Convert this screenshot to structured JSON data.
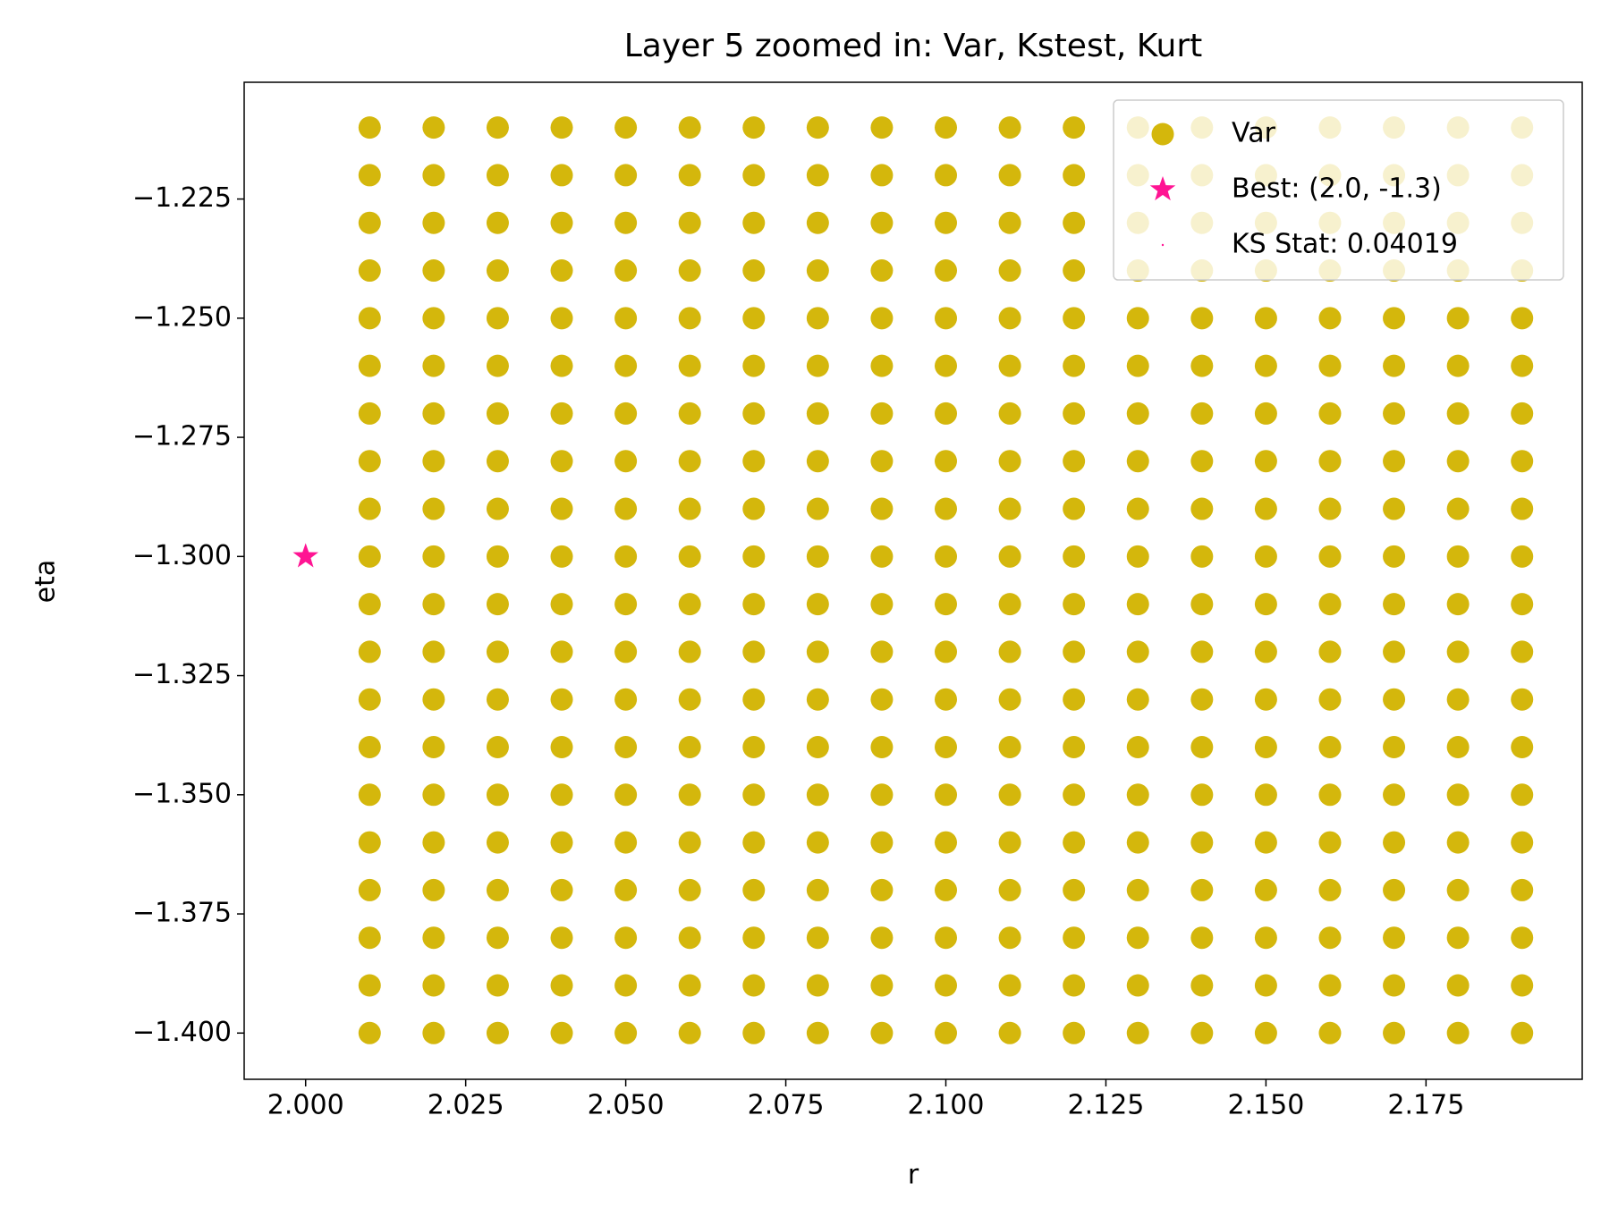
{
  "chart_data": {
    "type": "scatter",
    "title": "Layer 5 zoomed in: Var, Kstest, Kurt",
    "xlabel": "r",
    "ylabel": "eta",
    "xlim": [
      1.9904,
      2.1994
    ],
    "ylim": [
      -1.4097,
      -1.2005
    ],
    "xticks": [
      {
        "value": 2.0,
        "label": "2.000"
      },
      {
        "value": 2.025,
        "label": "2.025"
      },
      {
        "value": 2.05,
        "label": "2.050"
      },
      {
        "value": 2.075,
        "label": "2.075"
      },
      {
        "value": 2.1,
        "label": "2.100"
      },
      {
        "value": 2.125,
        "label": "2.125"
      },
      {
        "value": 2.15,
        "label": "2.150"
      },
      {
        "value": 2.175,
        "label": "2.175"
      }
    ],
    "yticks": [
      {
        "value": -1.225,
        "label": "−1.225"
      },
      {
        "value": -1.25,
        "label": "−1.250"
      },
      {
        "value": -1.275,
        "label": "−1.275"
      },
      {
        "value": -1.3,
        "label": "−1.300"
      },
      {
        "value": -1.325,
        "label": "−1.325"
      },
      {
        "value": -1.35,
        "label": "−1.350"
      },
      {
        "value": -1.375,
        "label": "−1.375"
      },
      {
        "value": -1.4,
        "label": "−1.400"
      }
    ],
    "grid": false,
    "legend": "upper right",
    "series": [
      {
        "name": "Var",
        "color": "#d4b70c",
        "marker": "o",
        "x": [
          2.01,
          2.02,
          2.03,
          2.04,
          2.05,
          2.06,
          2.07,
          2.08,
          2.09,
          2.1,
          2.11,
          2.12,
          2.13,
          2.14,
          2.15,
          2.16,
          2.17,
          2.18,
          2.19,
          2.01,
          2.02,
          2.03,
          2.04,
          2.05,
          2.06,
          2.07,
          2.08,
          2.09,
          2.1,
          2.11,
          2.12,
          2.13,
          2.14,
          2.15,
          2.16,
          2.17,
          2.18,
          2.19,
          2.01,
          2.02,
          2.03,
          2.04,
          2.05,
          2.06,
          2.07,
          2.08,
          2.09,
          2.1,
          2.11,
          2.12,
          2.13,
          2.14,
          2.15,
          2.16,
          2.17,
          2.18,
          2.19,
          2.01,
          2.02,
          2.03,
          2.04,
          2.05,
          2.06,
          2.07,
          2.08,
          2.09,
          2.1,
          2.11,
          2.12,
          2.13,
          2.14,
          2.15,
          2.16,
          2.17,
          2.18,
          2.19,
          2.01,
          2.02,
          2.03,
          2.04,
          2.05,
          2.06,
          2.07,
          2.08,
          2.09,
          2.1,
          2.11,
          2.12,
          2.13,
          2.14,
          2.15,
          2.16,
          2.17,
          2.18,
          2.19,
          2.01,
          2.02,
          2.03,
          2.04,
          2.05,
          2.06,
          2.07,
          2.08,
          2.09,
          2.1,
          2.11,
          2.12,
          2.13,
          2.14,
          2.15,
          2.16,
          2.17,
          2.18,
          2.19,
          2.01,
          2.02,
          2.03,
          2.04,
          2.05,
          2.06,
          2.07,
          2.08,
          2.09,
          2.1,
          2.11,
          2.12,
          2.13,
          2.14,
          2.15,
          2.16,
          2.17,
          2.18,
          2.19,
          2.01,
          2.02,
          2.03,
          2.04,
          2.05,
          2.06,
          2.07,
          2.08,
          2.09,
          2.1,
          2.11,
          2.12,
          2.13,
          2.14,
          2.15,
          2.16,
          2.17,
          2.18,
          2.19,
          2.01,
          2.02,
          2.03,
          2.04,
          2.05,
          2.06,
          2.07,
          2.08,
          2.09,
          2.1,
          2.11,
          2.12,
          2.13,
          2.14,
          2.15,
          2.16,
          2.17,
          2.18,
          2.19,
          2.01,
          2.02,
          2.03,
          2.04,
          2.05,
          2.06,
          2.07,
          2.08,
          2.09,
          2.1,
          2.11,
          2.12,
          2.13,
          2.14,
          2.15,
          2.16,
          2.17,
          2.18,
          2.19,
          2.01,
          2.02,
          2.03,
          2.04,
          2.05,
          2.06,
          2.07,
          2.08,
          2.09,
          2.1,
          2.11,
          2.12,
          2.13,
          2.14,
          2.15,
          2.16,
          2.17,
          2.18,
          2.19,
          2.01,
          2.02,
          2.03,
          2.04,
          2.05,
          2.06,
          2.07,
          2.08,
          2.09,
          2.1,
          2.11,
          2.12,
          2.13,
          2.14,
          2.15,
          2.16,
          2.17,
          2.18,
          2.19,
          2.01,
          2.02,
          2.03,
          2.04,
          2.05,
          2.06,
          2.07,
          2.08,
          2.09,
          2.1,
          2.11,
          2.12,
          2.13,
          2.14,
          2.15,
          2.16,
          2.17,
          2.18,
          2.19,
          2.01,
          2.02,
          2.03,
          2.04,
          2.05,
          2.06,
          2.07,
          2.08,
          2.09,
          2.1,
          2.11,
          2.12,
          2.13,
          2.14,
          2.15,
          2.16,
          2.17,
          2.18,
          2.19,
          2.01,
          2.02,
          2.03,
          2.04,
          2.05,
          2.06,
          2.07,
          2.08,
          2.09,
          2.1,
          2.11,
          2.12,
          2.13,
          2.14,
          2.15,
          2.16,
          2.17,
          2.18,
          2.19,
          2.01,
          2.02,
          2.03,
          2.04,
          2.05,
          2.06,
          2.07,
          2.08,
          2.09,
          2.1,
          2.11,
          2.12,
          2.13,
          2.14,
          2.15,
          2.16,
          2.17,
          2.18,
          2.19,
          2.01,
          2.02,
          2.03,
          2.04,
          2.05,
          2.06,
          2.07,
          2.08,
          2.09,
          2.1,
          2.11,
          2.12,
          2.13,
          2.14,
          2.15,
          2.16,
          2.17,
          2.18,
          2.19,
          2.01,
          2.02,
          2.03,
          2.04,
          2.05,
          2.06,
          2.07,
          2.08,
          2.09,
          2.1,
          2.11,
          2.12,
          2.13,
          2.14,
          2.15,
          2.16,
          2.17,
          2.18,
          2.19,
          2.01,
          2.02,
          2.03,
          2.04,
          2.05,
          2.06,
          2.07,
          2.08,
          2.09,
          2.1,
          2.11,
          2.12,
          2.13,
          2.14,
          2.15,
          2.16,
          2.17,
          2.18,
          2.19,
          2.01,
          2.02,
          2.03,
          2.04,
          2.05,
          2.06,
          2.07,
          2.08,
          2.09,
          2.1,
          2.11,
          2.12,
          2.13,
          2.14,
          2.15,
          2.16,
          2.17,
          2.18,
          2.19
        ],
        "values": [
          -1.21,
          -1.21,
          -1.21,
          -1.21,
          -1.21,
          -1.21,
          -1.21,
          -1.21,
          -1.21,
          -1.21,
          -1.21,
          -1.21,
          -1.21,
          -1.21,
          -1.21,
          -1.21,
          -1.21,
          -1.21,
          -1.21,
          -1.22,
          -1.22,
          -1.22,
          -1.22,
          -1.22,
          -1.22,
          -1.22,
          -1.22,
          -1.22,
          -1.22,
          -1.22,
          -1.22,
          -1.22,
          -1.22,
          -1.22,
          -1.22,
          -1.22,
          -1.22,
          -1.22,
          -1.23,
          -1.23,
          -1.23,
          -1.23,
          -1.23,
          -1.23,
          -1.23,
          -1.23,
          -1.23,
          -1.23,
          -1.23,
          -1.23,
          -1.23,
          -1.23,
          -1.23,
          -1.23,
          -1.23,
          -1.23,
          -1.23,
          -1.24,
          -1.24,
          -1.24,
          -1.24,
          -1.24,
          -1.24,
          -1.24,
          -1.24,
          -1.24,
          -1.24,
          -1.24,
          -1.24,
          -1.24,
          -1.24,
          -1.24,
          -1.24,
          -1.24,
          -1.24,
          -1.24,
          -1.25,
          -1.25,
          -1.25,
          -1.25,
          -1.25,
          -1.25,
          -1.25,
          -1.25,
          -1.25,
          -1.25,
          -1.25,
          -1.25,
          -1.25,
          -1.25,
          -1.25,
          -1.25,
          -1.25,
          -1.25,
          -1.25,
          -1.26,
          -1.26,
          -1.26,
          -1.26,
          -1.26,
          -1.26,
          -1.26,
          -1.26,
          -1.26,
          -1.26,
          -1.26,
          -1.26,
          -1.26,
          -1.26,
          -1.26,
          -1.26,
          -1.26,
          -1.26,
          -1.26,
          -1.27,
          -1.27,
          -1.27,
          -1.27,
          -1.27,
          -1.27,
          -1.27,
          -1.27,
          -1.27,
          -1.27,
          -1.27,
          -1.27,
          -1.27,
          -1.27,
          -1.27,
          -1.27,
          -1.27,
          -1.27,
          -1.27,
          -1.28,
          -1.28,
          -1.28,
          -1.28,
          -1.28,
          -1.28,
          -1.28,
          -1.28,
          -1.28,
          -1.28,
          -1.28,
          -1.28,
          -1.28,
          -1.28,
          -1.28,
          -1.28,
          -1.28,
          -1.28,
          -1.28,
          -1.29,
          -1.29,
          -1.29,
          -1.29,
          -1.29,
          -1.29,
          -1.29,
          -1.29,
          -1.29,
          -1.29,
          -1.29,
          -1.29,
          -1.29,
          -1.29,
          -1.29,
          -1.29,
          -1.29,
          -1.29,
          -1.29,
          -1.3,
          -1.3,
          -1.3,
          -1.3,
          -1.3,
          -1.3,
          -1.3,
          -1.3,
          -1.3,
          -1.3,
          -1.3,
          -1.3,
          -1.3,
          -1.3,
          -1.3,
          -1.3,
          -1.3,
          -1.3,
          -1.3,
          -1.31,
          -1.31,
          -1.31,
          -1.31,
          -1.31,
          -1.31,
          -1.31,
          -1.31,
          -1.31,
          -1.31,
          -1.31,
          -1.31,
          -1.31,
          -1.31,
          -1.31,
          -1.31,
          -1.31,
          -1.31,
          -1.31,
          -1.32,
          -1.32,
          -1.32,
          -1.32,
          -1.32,
          -1.32,
          -1.32,
          -1.32,
          -1.32,
          -1.32,
          -1.32,
          -1.32,
          -1.32,
          -1.32,
          -1.32,
          -1.32,
          -1.32,
          -1.32,
          -1.32,
          -1.33,
          -1.33,
          -1.33,
          -1.33,
          -1.33,
          -1.33,
          -1.33,
          -1.33,
          -1.33,
          -1.33,
          -1.33,
          -1.33,
          -1.33,
          -1.33,
          -1.33,
          -1.33,
          -1.33,
          -1.33,
          -1.33,
          -1.34,
          -1.34,
          -1.34,
          -1.34,
          -1.34,
          -1.34,
          -1.34,
          -1.34,
          -1.34,
          -1.34,
          -1.34,
          -1.34,
          -1.34,
          -1.34,
          -1.34,
          -1.34,
          -1.34,
          -1.34,
          -1.34,
          -1.35,
          -1.35,
          -1.35,
          -1.35,
          -1.35,
          -1.35,
          -1.35,
          -1.35,
          -1.35,
          -1.35,
          -1.35,
          -1.35,
          -1.35,
          -1.35,
          -1.35,
          -1.35,
          -1.35,
          -1.35,
          -1.35,
          -1.36,
          -1.36,
          -1.36,
          -1.36,
          -1.36,
          -1.36,
          -1.36,
          -1.36,
          -1.36,
          -1.36,
          -1.36,
          -1.36,
          -1.36,
          -1.36,
          -1.36,
          -1.36,
          -1.36,
          -1.36,
          -1.36,
          -1.37,
          -1.37,
          -1.37,
          -1.37,
          -1.37,
          -1.37,
          -1.37,
          -1.37,
          -1.37,
          -1.37,
          -1.37,
          -1.37,
          -1.37,
          -1.37,
          -1.37,
          -1.37,
          -1.37,
          -1.37,
          -1.37,
          -1.38,
          -1.38,
          -1.38,
          -1.38,
          -1.38,
          -1.38,
          -1.38,
          -1.38,
          -1.38,
          -1.38,
          -1.38,
          -1.38,
          -1.38,
          -1.38,
          -1.38,
          -1.38,
          -1.38,
          -1.38,
          -1.38,
          -1.39,
          -1.39,
          -1.39,
          -1.39,
          -1.39,
          -1.39,
          -1.39,
          -1.39,
          -1.39,
          -1.39,
          -1.39,
          -1.39,
          -1.39,
          -1.39,
          -1.39,
          -1.39,
          -1.39,
          -1.39,
          -1.39,
          -1.4,
          -1.4,
          -1.4,
          -1.4,
          -1.4,
          -1.4,
          -1.4,
          -1.4,
          -1.4,
          -1.4,
          -1.4,
          -1.4,
          -1.4,
          -1.4,
          -1.4,
          -1.4,
          -1.4,
          -1.4,
          -1.4
        ]
      },
      {
        "name": "Best: (2.0, -1.3)",
        "color": "#ff1493",
        "marker": "*",
        "x": [
          2.0
        ],
        "values": [
          -1.3
        ]
      },
      {
        "name": "KS Stat: 0.04019",
        "color": "#ff1493",
        "marker": ".",
        "x": [],
        "values": []
      }
    ]
  }
}
